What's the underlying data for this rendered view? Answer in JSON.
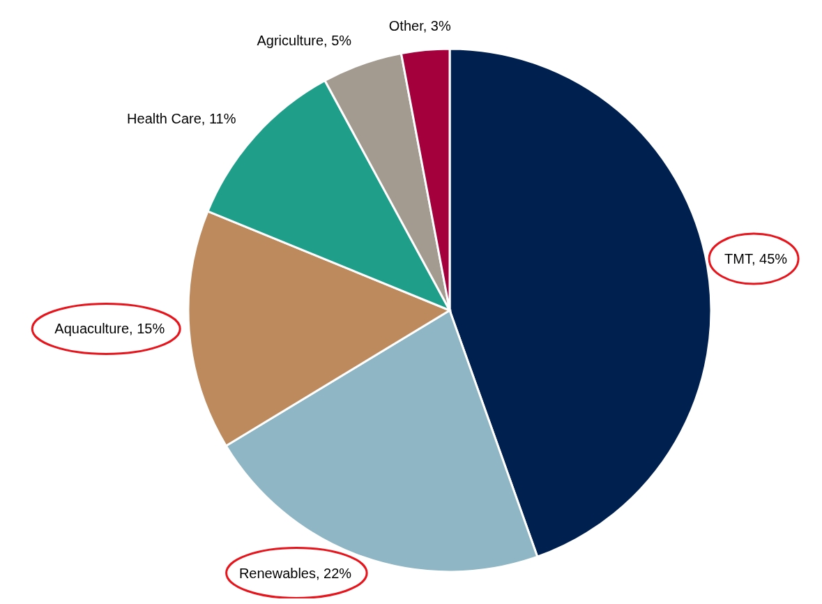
{
  "chart_data": {
    "type": "pie",
    "categories": [
      "TMT",
      "Renewables",
      "Aquaculture",
      "Health Care",
      "Agriculture",
      "Other"
    ],
    "values": [
      45,
      22,
      15,
      11,
      5,
      3
    ],
    "value_labels": [
      "45%",
      "22%",
      "15%",
      "11%",
      "5%",
      "3%"
    ],
    "colors": [
      "#002050",
      "#8fb6c4",
      "#bd8a5e",
      "#1f9e8a",
      "#a39a90",
      "#a3003c"
    ],
    "legend": false
  }
}
